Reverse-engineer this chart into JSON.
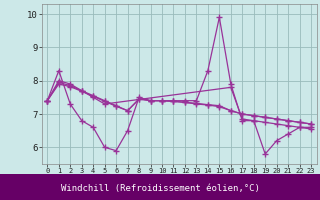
{
  "xlabel": "Windchill (Refroidissement éolien,°C)",
  "background_color": "#cce8e8",
  "line_color": "#993399",
  "grid_color": "#99bbbb",
  "xlabel_bg": "#660066",
  "xlabel_fg": "#ffffff",
  "xlim": [
    -0.5,
    23.5
  ],
  "ylim": [
    5.5,
    10.3
  ],
  "yticks": [
    6,
    7,
    8,
    9,
    10
  ],
  "xticks": [
    0,
    1,
    2,
    3,
    4,
    5,
    6,
    7,
    8,
    9,
    10,
    11,
    12,
    13,
    14,
    15,
    16,
    17,
    18,
    19,
    20,
    21,
    22,
    23
  ],
  "lines": [
    {
      "x": [
        0,
        1,
        2,
        3,
        4,
        5,
        6,
        7,
        8,
        9,
        10,
        11,
        12,
        13,
        14,
        15,
        16,
        17,
        18,
        19,
        20,
        21,
        22,
        23
      ],
      "y": [
        7.4,
        8.3,
        7.3,
        6.8,
        6.6,
        6.0,
        5.9,
        6.5,
        7.5,
        7.4,
        7.4,
        7.4,
        7.4,
        7.4,
        8.3,
        9.9,
        7.9,
        6.8,
        6.8,
        5.8,
        6.2,
        6.4,
        6.6,
        6.6
      ]
    },
    {
      "x": [
        0,
        1,
        2,
        3,
        4,
        5,
        16,
        17,
        18,
        19,
        20,
        21,
        22,
        23
      ],
      "y": [
        7.4,
        8.0,
        7.9,
        7.7,
        7.5,
        7.3,
        7.8,
        6.85,
        6.8,
        6.75,
        6.7,
        6.65,
        6.6,
        6.55
      ]
    },
    {
      "x": [
        0,
        1,
        2,
        3,
        4,
        5,
        6,
        7,
        8,
        9,
        10,
        11,
        12,
        13,
        14,
        15,
        16,
        17,
        18,
        19,
        20,
        21,
        22,
        23
      ],
      "y": [
        7.4,
        7.95,
        7.85,
        7.7,
        7.55,
        7.4,
        7.25,
        7.1,
        7.45,
        7.4,
        7.4,
        7.38,
        7.35,
        7.32,
        7.28,
        7.25,
        7.1,
        7.0,
        6.95,
        6.9,
        6.85,
        6.8,
        6.75,
        6.7
      ]
    },
    {
      "x": [
        0,
        1,
        2,
        3,
        4,
        5,
        6,
        7,
        8,
        9,
        10,
        11,
        12,
        13,
        14,
        15,
        16,
        17,
        18,
        19,
        20,
        21,
        22,
        23
      ],
      "y": [
        7.4,
        7.9,
        7.82,
        7.68,
        7.53,
        7.38,
        7.23,
        7.1,
        7.45,
        7.4,
        7.4,
        7.38,
        7.35,
        7.3,
        7.27,
        7.22,
        7.1,
        7.0,
        6.95,
        6.9,
        6.85,
        6.8,
        6.75,
        6.7
      ]
    }
  ]
}
